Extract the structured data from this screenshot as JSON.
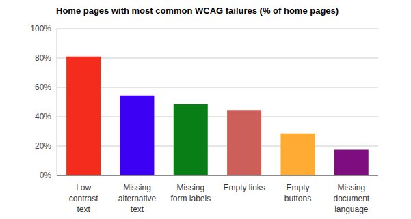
{
  "chart_data": {
    "type": "bar",
    "title": "Home pages with most common WCAG failures (% of home pages)",
    "categories": [
      "Low contrast text",
      "Missing alternative text",
      "Missing form labels",
      "Empty links",
      "Empty buttons",
      "Missing document language"
    ],
    "values": [
      81,
      54.5,
      48.5,
      44.5,
      28.5,
      17.5
    ],
    "colors": [
      "#f42c1e",
      "#3c00f4",
      "#0a7e16",
      "#cc5f5a",
      "#ffab34",
      "#7e0d80"
    ],
    "ylim": [
      0,
      100
    ],
    "yticks": [
      {
        "value": 0,
        "label": "0%"
      },
      {
        "value": 20,
        "label": "20%"
      },
      {
        "value": 40,
        "label": "40%"
      },
      {
        "value": 60,
        "label": "60%"
      },
      {
        "value": 80,
        "label": "80%"
      },
      {
        "value": 100,
        "label": "100%"
      }
    ],
    "grid": true
  }
}
